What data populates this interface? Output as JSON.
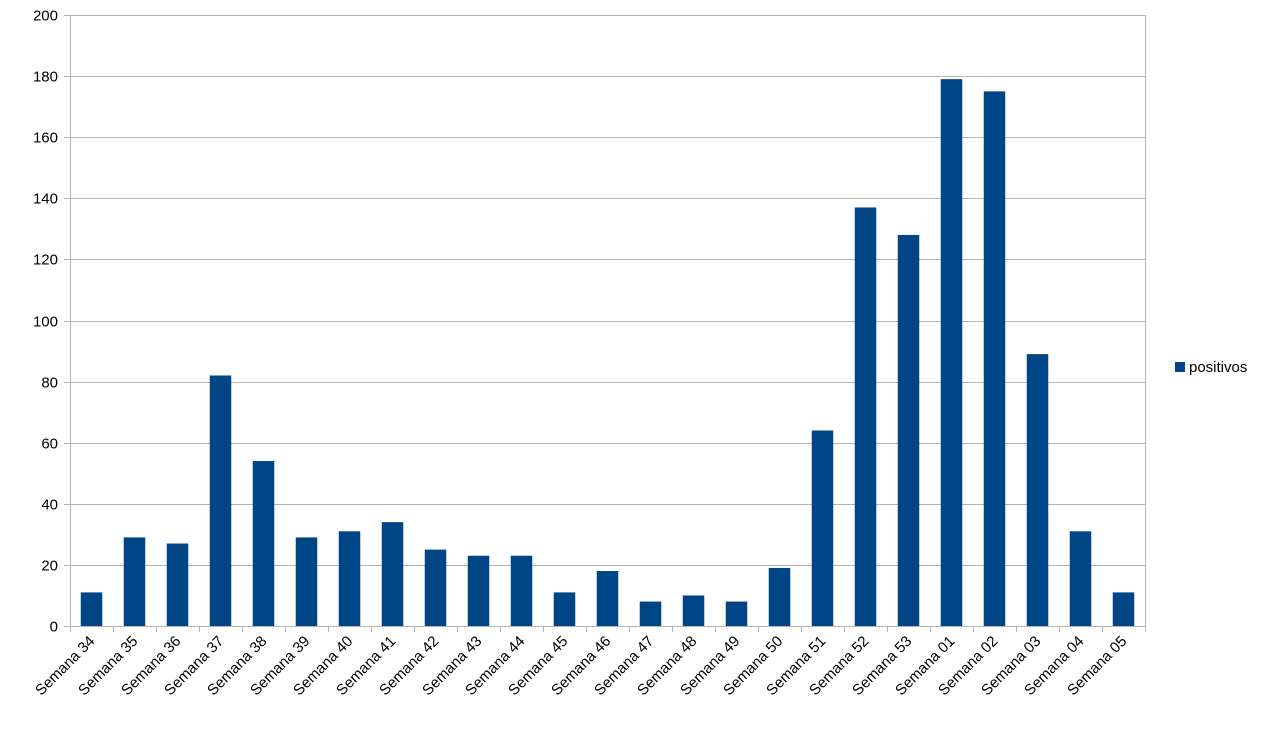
{
  "chart_data": {
    "type": "bar",
    "categories": [
      "Semana 34",
      "Semana 35",
      "Semana 36",
      "Semana 37",
      "Semana 38",
      "Semana 39",
      "Semana 40",
      "Semana 41",
      "Semana 42",
      "Semana 43",
      "Semana 44",
      "Semana 45",
      "Semana 46",
      "Semana 47",
      "Semana 48",
      "Semana 49",
      "Semana 50",
      "Semana 51",
      "Semana 52",
      "Semana 53",
      "Semana 01",
      "Semana 02",
      "Semana 03",
      "Semana 04",
      "Semana 05"
    ],
    "series": [
      {
        "name": "positivos",
        "color": "#004586",
        "values": [
          11,
          29,
          27,
          82,
          54,
          29,
          31,
          34,
          25,
          23,
          23,
          11,
          18,
          8,
          10,
          8,
          19,
          64,
          137,
          128,
          179,
          175,
          89,
          31,
          11
        ]
      }
    ],
    "title": "",
    "xlabel": "",
    "ylabel": "",
    "ylim": [
      0,
      200
    ],
    "yticks": [
      0,
      20,
      40,
      60,
      80,
      100,
      120,
      140,
      160,
      180,
      200
    ],
    "ytick_labels": [
      "0",
      "20",
      "40",
      "60",
      "80",
      "100",
      "120",
      "140",
      "160",
      "180",
      "200"
    ],
    "grid": true,
    "gridline_color": "#b3b3b3",
    "legend_position": "right",
    "x_label_rotation_deg": -45
  }
}
